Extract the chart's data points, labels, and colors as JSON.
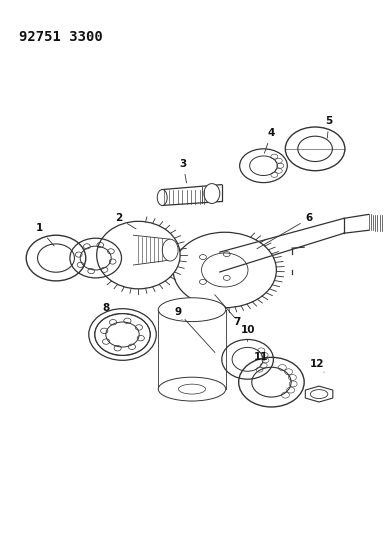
{
  "title": "92751 3300",
  "bg_color": "#ffffff",
  "line_color": "#333333",
  "label_color": "#111111",
  "title_fontsize": 10,
  "label_fontsize": 7.5
}
